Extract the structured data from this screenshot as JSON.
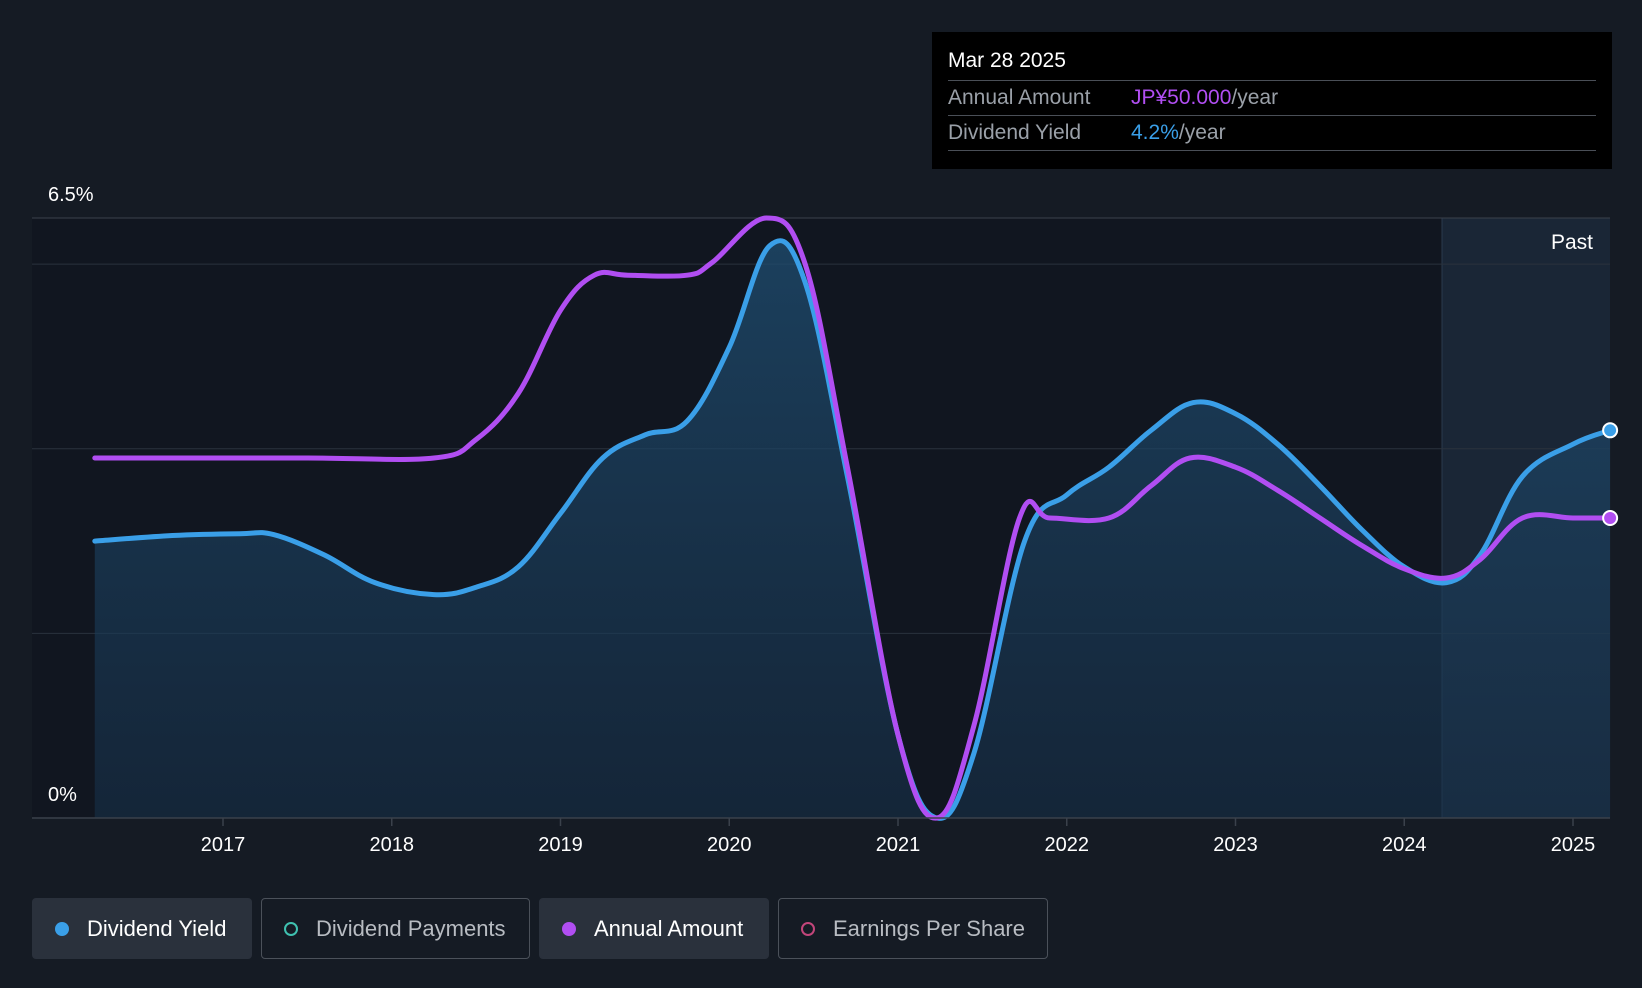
{
  "chart_data": {
    "type": "area",
    "title": "",
    "y_axis": {
      "max_label": "6.5%",
      "min_label": "0%",
      "ylim": [
        0,
        6.5
      ],
      "unit": "%"
    },
    "x_axis": {
      "ticks": [
        "2017",
        "2018",
        "2019",
        "2020",
        "2021",
        "2022",
        "2023",
        "2024",
        "2025"
      ],
      "range": [
        2016.23,
        2025.23
      ]
    },
    "past_marker": {
      "label": "Past",
      "from": 2024.25
    },
    "series": [
      {
        "name": "Dividend Yield",
        "color": "#3a9fe8",
        "points": [
          [
            2016.24,
            3.0
          ],
          [
            2016.7,
            3.06
          ],
          [
            2017.1,
            3.08
          ],
          [
            2017.3,
            3.07
          ],
          [
            2017.6,
            2.85
          ],
          [
            2017.9,
            2.55
          ],
          [
            2018.25,
            2.42
          ],
          [
            2018.5,
            2.5
          ],
          [
            2018.75,
            2.72
          ],
          [
            2019.0,
            3.3
          ],
          [
            2019.25,
            3.9
          ],
          [
            2019.5,
            4.15
          ],
          [
            2019.75,
            4.3
          ],
          [
            2020.0,
            5.1
          ],
          [
            2020.24,
            6.2
          ],
          [
            2020.45,
            5.8
          ],
          [
            2020.7,
            3.7
          ],
          [
            2021.0,
            0.9
          ],
          [
            2021.23,
            0.0
          ],
          [
            2021.45,
            0.7
          ],
          [
            2021.75,
            3.0
          ],
          [
            2022.0,
            3.5
          ],
          [
            2022.25,
            3.8
          ],
          [
            2022.5,
            4.2
          ],
          [
            2022.75,
            4.5
          ],
          [
            2023.0,
            4.38
          ],
          [
            2023.25,
            4.05
          ],
          [
            2023.5,
            3.6
          ],
          [
            2023.75,
            3.12
          ],
          [
            2024.0,
            2.72
          ],
          [
            2024.25,
            2.55
          ],
          [
            2024.45,
            2.85
          ],
          [
            2024.7,
            3.7
          ],
          [
            2025.0,
            4.05
          ],
          [
            2025.22,
            4.2
          ]
        ]
      },
      {
        "name": "Annual Amount",
        "color": "#b14ef2",
        "points": [
          [
            2016.24,
            3.9
          ],
          [
            2016.6,
            3.9
          ],
          [
            2017.5,
            3.9
          ],
          [
            2018.25,
            3.9
          ],
          [
            2018.5,
            4.1
          ],
          [
            2018.75,
            4.6
          ],
          [
            2019.0,
            5.5
          ],
          [
            2019.2,
            5.88
          ],
          [
            2019.4,
            5.88
          ],
          [
            2019.75,
            5.88
          ],
          [
            2019.9,
            6.02
          ],
          [
            2020.22,
            6.5
          ],
          [
            2020.45,
            6.0
          ],
          [
            2020.7,
            3.8
          ],
          [
            2021.0,
            0.9
          ],
          [
            2021.23,
            0.0
          ],
          [
            2021.45,
            1.0
          ],
          [
            2021.72,
            3.25
          ],
          [
            2021.9,
            3.25
          ],
          [
            2022.25,
            3.25
          ],
          [
            2022.5,
            3.6
          ],
          [
            2022.73,
            3.9
          ],
          [
            2023.0,
            3.8
          ],
          [
            2023.25,
            3.55
          ],
          [
            2023.5,
            3.25
          ],
          [
            2023.75,
            2.95
          ],
          [
            2024.0,
            2.7
          ],
          [
            2024.25,
            2.6
          ],
          [
            2024.45,
            2.8
          ],
          [
            2024.7,
            3.25
          ],
          [
            2025.0,
            3.25
          ],
          [
            2025.22,
            3.25
          ]
        ]
      }
    ],
    "tooltip": {
      "date": "Mar 28 2025",
      "rows": [
        {
          "key": "Annual Amount",
          "value": "JP¥50.000",
          "unit": "/year"
        },
        {
          "key": "Dividend Yield",
          "value": "4.2%",
          "unit": "/year"
        }
      ]
    }
  },
  "legend": [
    {
      "label": "Dividend Yield",
      "color": "#3a9fe8",
      "active": true
    },
    {
      "label": "Dividend Payments",
      "color": "#3fc1b0",
      "active": false
    },
    {
      "label": "Annual Amount",
      "color": "#b14ef2",
      "active": true
    },
    {
      "label": "Earnings Per Share",
      "color": "#c2457a",
      "active": false
    }
  ]
}
